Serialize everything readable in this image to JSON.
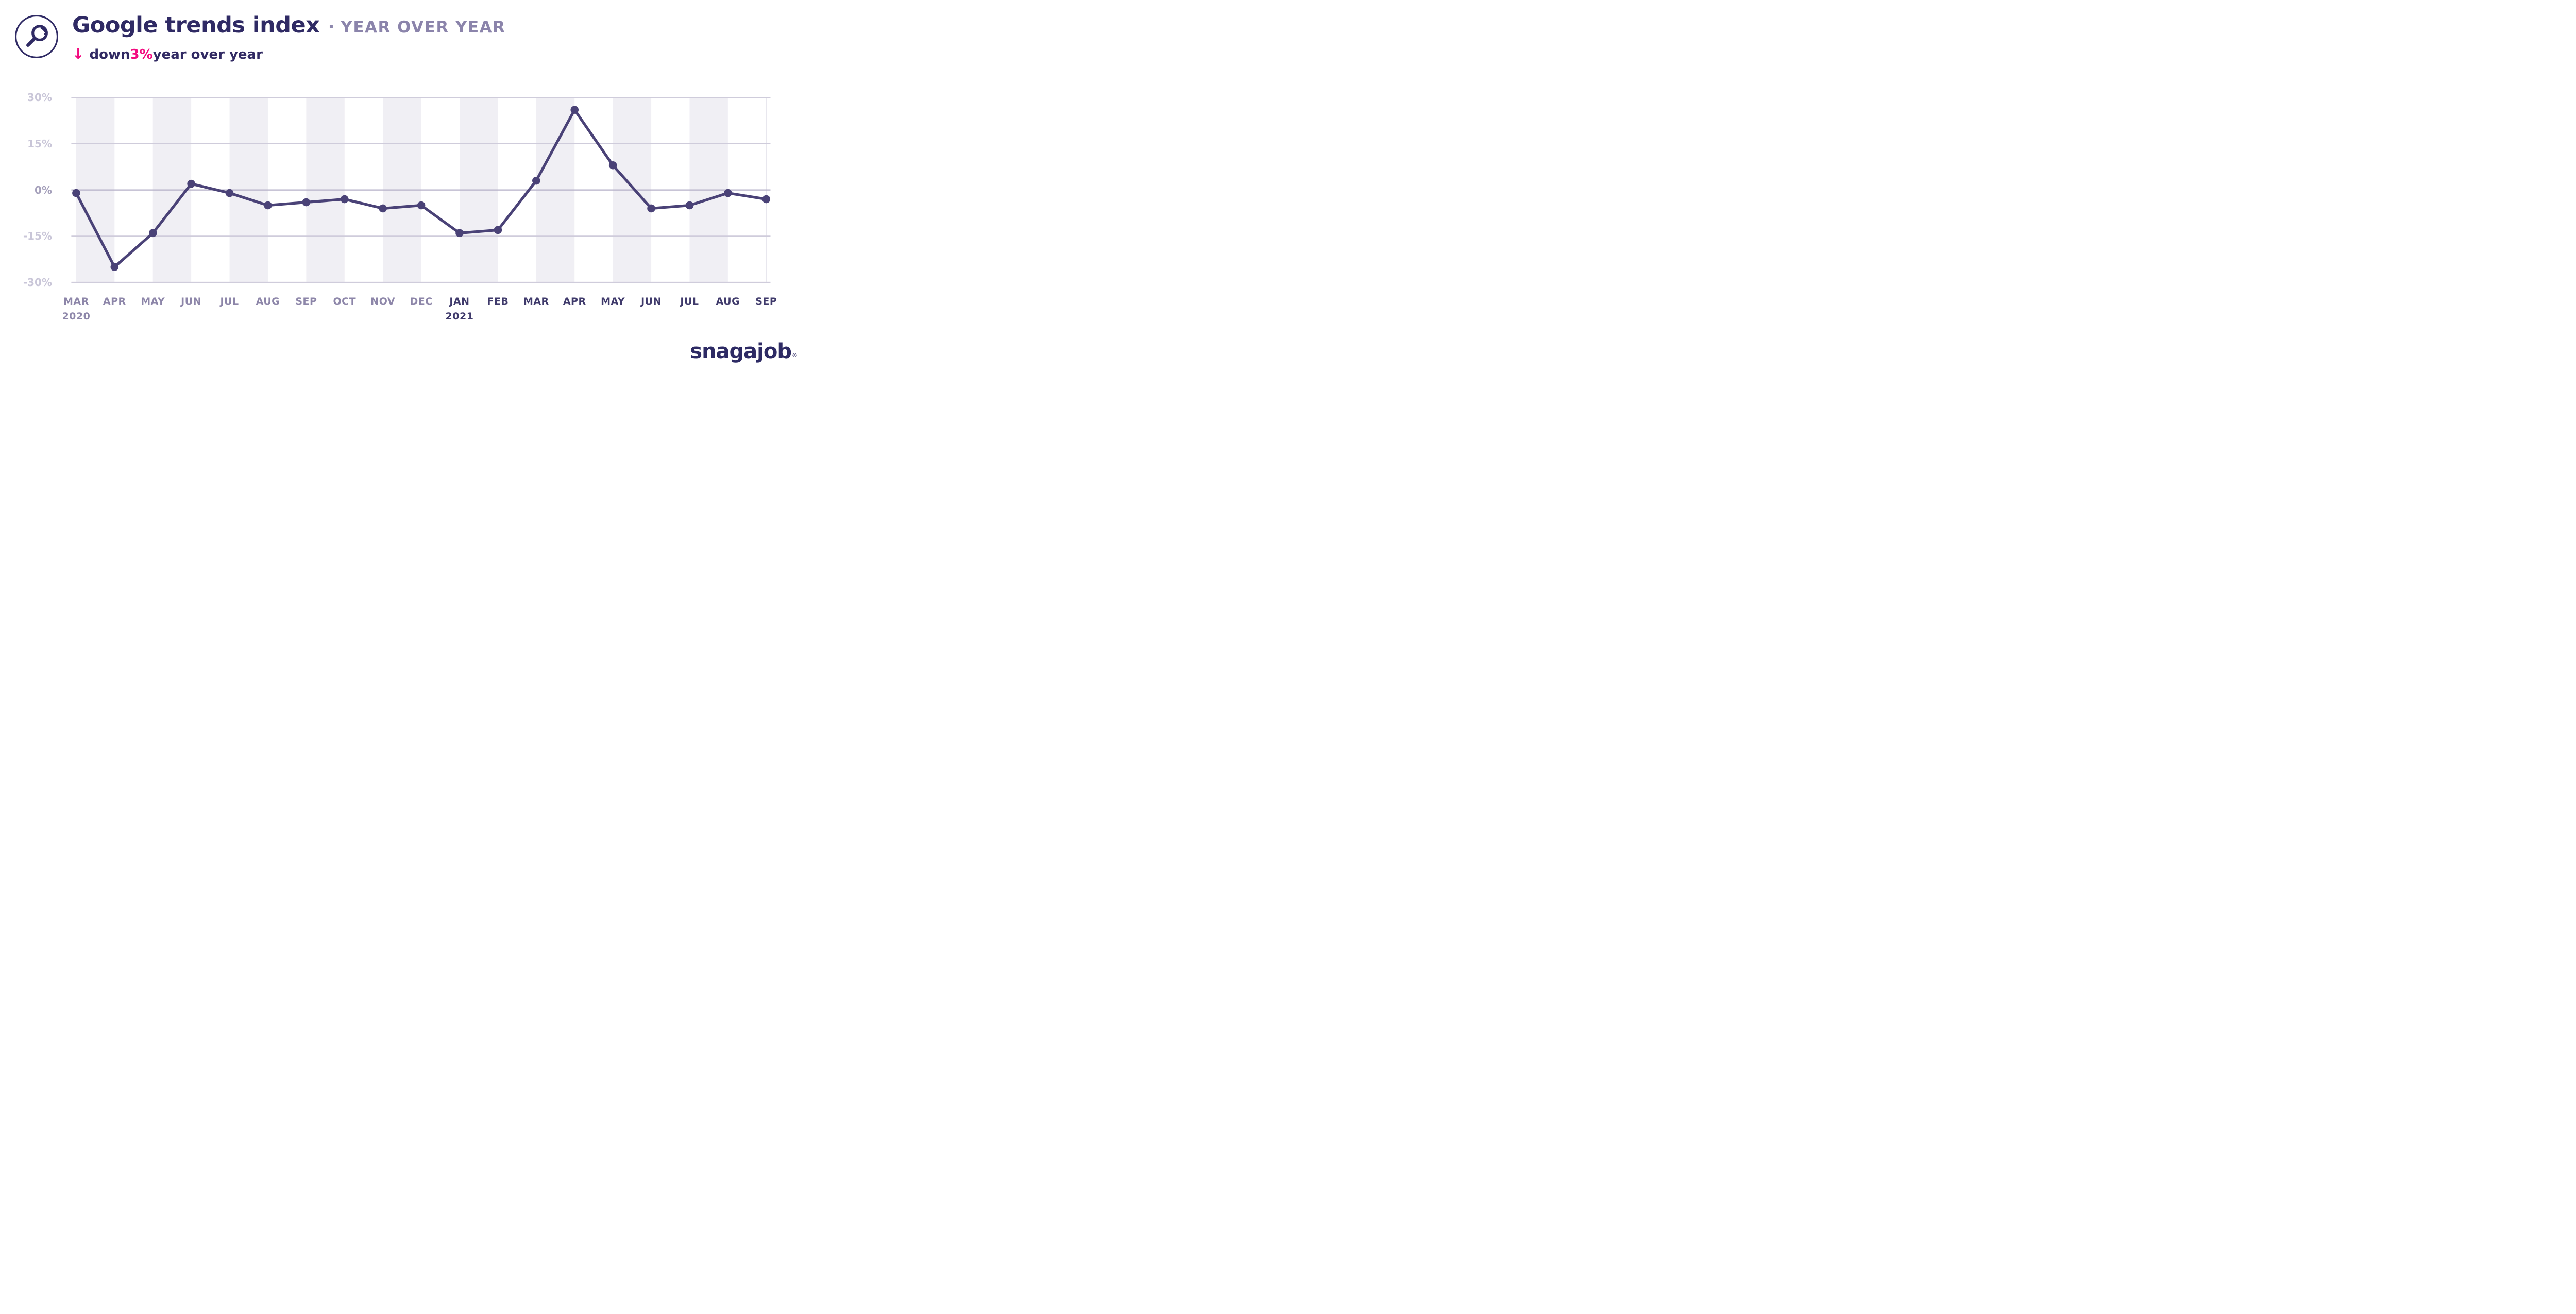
{
  "header": {
    "icon": "magnifier-icon",
    "title": "Google trends index",
    "separator": "·",
    "subtitle_tag": "YEAR OVER YEAR",
    "delta": {
      "arrow": "↓",
      "prefix": "down ",
      "value": "3%",
      "suffix": " year over year"
    }
  },
  "footer": {
    "logo_text": "snagajob",
    "registered_mark": "®"
  },
  "colors": {
    "title_navy": "#2f2a64",
    "tag_purple": "#8b84ab",
    "accent_pink": "#f30b80",
    "line": "#4a4277",
    "grid": "#cfccdb",
    "grid_zero": "#b6b1c8",
    "band": "#f0eff4",
    "plot_right_border": "#e8e7ee",
    "ytick_light": "#c9c6d8",
    "ytick_zero": "#a5a0bb",
    "xlabel_2020": "#8d86a9",
    "xlabel_2021": "#3f3a6b",
    "logo_navy": "#2d2a64"
  },
  "chart_data": {
    "type": "line",
    "title": "Google trends index",
    "subtitle": "down 3% year over year",
    "unit": "%",
    "categories": [
      "MAR",
      "APR",
      "MAY",
      "JUN",
      "JUL",
      "AUG",
      "SEP",
      "OCT",
      "NOV",
      "DEC",
      "JAN",
      "FEB",
      "MAR",
      "APR",
      "MAY",
      "JUN",
      "JUL",
      "AUG",
      "SEP"
    ],
    "category_sublabels": [
      "2020",
      "",
      "",
      "",
      "",
      "",
      "",
      "",
      "",
      "",
      "2021",
      "",
      "",
      "",
      "",
      "",
      "",
      "",
      ""
    ],
    "category_years": [
      2020,
      2020,
      2020,
      2020,
      2020,
      2020,
      2020,
      2020,
      2020,
      2020,
      2021,
      2021,
      2021,
      2021,
      2021,
      2021,
      2021,
      2021,
      2021
    ],
    "values": [
      -1,
      -25,
      -14,
      2,
      -1,
      -5,
      -4,
      -3,
      -6,
      -5,
      -14,
      -13,
      3,
      26,
      8,
      -6,
      -5,
      -1,
      -3
    ],
    "ylim": [
      -30,
      30
    ],
    "yticks": [
      30,
      15,
      0,
      -15,
      -30
    ],
    "ytick_labels": [
      "30%",
      "15%",
      "0%",
      "-15%",
      "-30%"
    ],
    "grid": "horizontal",
    "legend": "none",
    "band_pattern": "alternating vertical stripes between month positions, starting shaded at MAR 2020"
  }
}
